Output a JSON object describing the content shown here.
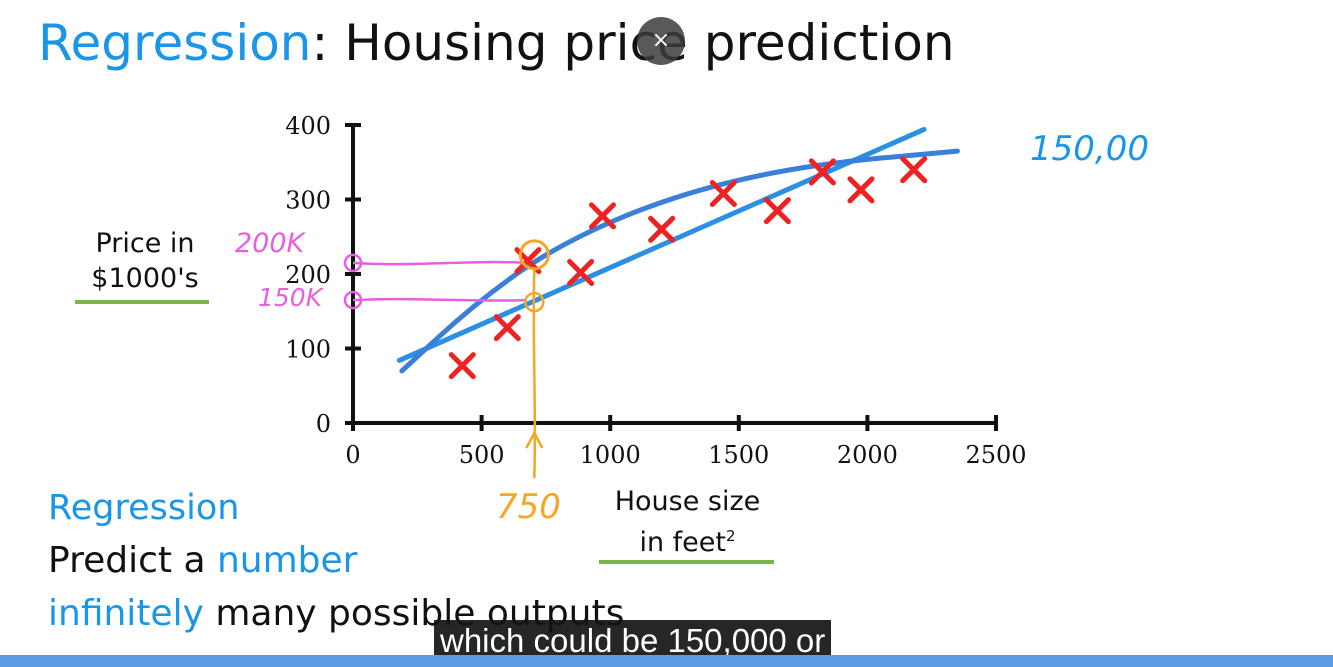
{
  "header": {
    "title_accent": "Regression",
    "title_rest": ": Housing price prediction",
    "close_label": "×"
  },
  "chart_data": {
    "type": "scatter",
    "xlabel": "House size in feet²",
    "ylabel": "Price in $1000's",
    "xlim": [
      0,
      2500
    ],
    "ylim": [
      0,
      400
    ],
    "x_ticks": [
      "0",
      "500",
      "1000",
      "1500",
      "2000",
      "2500"
    ],
    "y_ticks": [
      "0",
      "100",
      "200",
      "300",
      "400"
    ],
    "series": [
      {
        "points": [
          [
            425,
            77
          ],
          [
            600,
            128
          ],
          [
            680,
            218
          ],
          [
            885,
            202
          ],
          [
            970,
            278
          ],
          [
            1200,
            260
          ],
          [
            1440,
            308
          ],
          [
            1650,
            285
          ],
          [
            1825,
            337
          ],
          [
            1975,
            313
          ],
          [
            2180,
            340
          ]
        ]
      }
    ],
    "fit_lines": {
      "straight": [
        [
          180,
          84
        ],
        [
          2220,
          394
        ]
      ],
      "curve": [
        [
          190,
          70
        ],
        [
          480,
          162
        ],
        [
          800,
          240
        ],
        [
          1250,
          306
        ],
        [
          1750,
          346
        ],
        [
          2350,
          365
        ]
      ]
    },
    "colors": {
      "points": "#ee2222",
      "fit": "#2b8fe3",
      "annotation": "#e85ee0",
      "highlight": "#f5a623"
    },
    "annotations": {
      "price_high": "200K",
      "price_low": "150K",
      "size_marker": "750",
      "handwritten": "150,00"
    }
  },
  "bottom": {
    "heading": "Regression",
    "line2_pre": "Predict a ",
    "line2_accent": "number",
    "line3_accent": "infinitely",
    "line3_rest": " many possible outputs"
  },
  "video": {
    "caption": "which could be 150,000 or",
    "progress": 1.0
  }
}
